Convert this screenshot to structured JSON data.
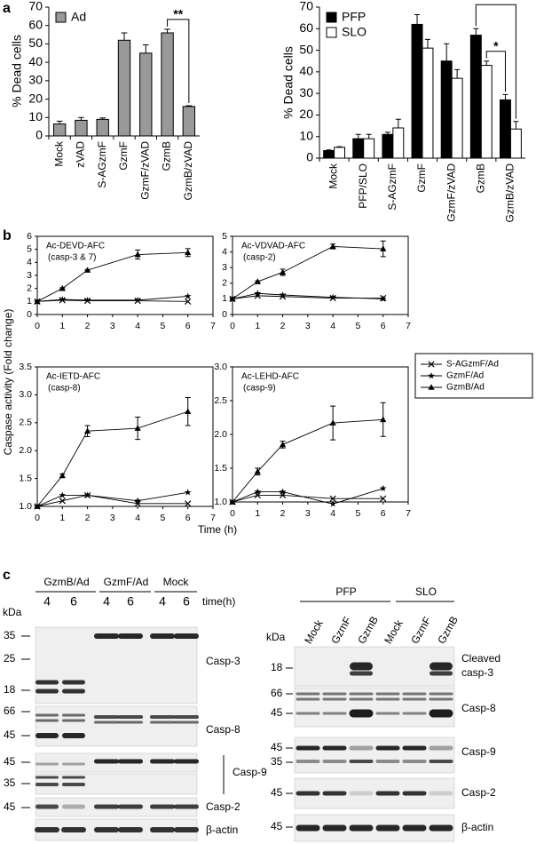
{
  "panel_labels": [
    "a",
    "b",
    "c"
  ],
  "chart_data": [
    {
      "type": "bar",
      "ylabel": "% Dead cells",
      "categories": [
        "Mock",
        "zVAD",
        "S-AGzmF",
        "GzmF",
        "GzmF/zVAD",
        "GzmB",
        "GzmB/zVAD"
      ],
      "series": [
        {
          "name": "Ad",
          "color": "#999999",
          "values": [
            6.5,
            8.5,
            9,
            52,
            45,
            56,
            16
          ],
          "errors": [
            1.5,
            1.5,
            0.8,
            4,
            4.5,
            2,
            0.4
          ]
        }
      ],
      "ylim": [
        0,
        70
      ],
      "yticks": [
        0,
        10,
        20,
        30,
        40,
        50,
        60,
        70
      ],
      "legend": "upper left",
      "annotations": [
        "**"
      ]
    },
    {
      "type": "bar",
      "ylabel": "% Dead cells",
      "categories": [
        "Mock",
        "PFP/SLO",
        "S-AGzmF",
        "GzmF",
        "GzmF/zVAD",
        "GzmB",
        "GzmB/zVAD"
      ],
      "series": [
        {
          "name": "PFP",
          "color": "#000000",
          "values": [
            3.5,
            9,
            11,
            62,
            45,
            57,
            27
          ],
          "errors": [
            0.3,
            2,
            1,
            4.5,
            8,
            3,
            2.5
          ]
        },
        {
          "name": "SLO",
          "color": "#ffffff",
          "values": [
            5,
            9,
            14,
            51,
            37,
            43,
            13.5
          ],
          "errors": [
            0.3,
            2,
            4,
            4,
            4,
            2,
            3.5
          ]
        }
      ],
      "ylim": [
        0,
        70
      ],
      "yticks": [
        0,
        10,
        20,
        30,
        40,
        50,
        60,
        70
      ],
      "legend": "upper left",
      "annotations": [
        "*",
        "*"
      ]
    },
    {
      "type": "line",
      "title": "Ac-DEVD-AFC",
      "subtitle": "(casp-3 & 7)",
      "ylabel": "Caspase activity (Fold change)",
      "xlabel": "Time (h)",
      "legend": "right",
      "x": [
        0,
        1,
        2,
        4,
        6
      ],
      "xlim": [
        0,
        7
      ],
      "xticks": [
        0,
        1,
        2,
        3,
        4,
        5,
        6,
        7
      ],
      "ylim": [
        0,
        6
      ],
      "yticks": [
        0,
        1,
        2,
        3,
        4,
        5,
        6
      ],
      "series": [
        {
          "name": "S-AGzmF/Ad",
          "color": "#000000",
          "values": [
            1,
            1.1,
            1.05,
            1.05,
            1.0
          ]
        },
        {
          "name": "GzmF/Ad",
          "color": "#000000",
          "values": [
            1,
            1.15,
            1.1,
            1.1,
            1.4
          ]
        },
        {
          "name": "GzmB/Ad",
          "color": "#000000",
          "values": [
            1,
            2,
            3.4,
            4.6,
            4.75
          ],
          "errors": [
            0,
            0.05,
            0.05,
            0.35,
            0.3
          ]
        }
      ]
    },
    {
      "type": "line",
      "title": "Ac-VDVAD-AFC",
      "subtitle": "(casp-2)",
      "x": [
        0,
        1,
        2,
        4,
        6
      ],
      "xlim": [
        0,
        7
      ],
      "xticks": [
        0,
        1,
        2,
        3,
        4,
        5,
        6,
        7
      ],
      "ylim": [
        0,
        5
      ],
      "yticks": [
        0,
        1,
        2,
        3,
        4,
        5
      ],
      "series": [
        {
          "color": "#000000",
          "values": [
            1,
            1.2,
            1.15,
            1.05,
            1.05
          ]
        },
        {
          "color": "#000000",
          "values": [
            1,
            1.35,
            1.25,
            1.1,
            1.0
          ]
        },
        {
          "color": "#000000",
          "values": [
            1,
            2.1,
            2.7,
            4.35,
            4.2
          ],
          "errors": [
            0,
            0.05,
            0.2,
            0.15,
            0.5
          ]
        }
      ]
    },
    {
      "type": "line",
      "title": "Ac-IETD-AFC",
      "subtitle": "(casp-8)",
      "x": [
        0,
        1,
        2,
        4,
        6
      ],
      "xlim": [
        0,
        7
      ],
      "xticks": [
        0,
        1,
        2,
        3,
        4,
        5,
        6,
        7
      ],
      "ylim": [
        1,
        3.5
      ],
      "yticks": [
        {
          "value": 1,
          "label": "1.0"
        },
        1.5,
        {
          "value": 2,
          "label": "2.0"
        },
        2.5,
        {
          "value": 3,
          "label": "3.0"
        },
        3.5
      ],
      "series": [
        {
          "color": "#000000",
          "values": [
            1,
            1.1,
            1.2,
            1.05,
            1.05
          ]
        },
        {
          "color": "#000000",
          "values": [
            1,
            1.2,
            1.2,
            1.1,
            1.25
          ]
        },
        {
          "color": "#000000",
          "values": [
            1,
            1.55,
            2.35,
            2.4,
            2.7
          ],
          "errors": [
            0,
            0.03,
            0.1,
            0.2,
            0.25
          ]
        }
      ]
    },
    {
      "type": "line",
      "title": "Ac-LEHD-AFC",
      "subtitle": "(casp-9)",
      "x": [
        0,
        1,
        2,
        4,
        6
      ],
      "xlim": [
        0,
        7
      ],
      "xticks": [
        0,
        1,
        2,
        3,
        4,
        5,
        6,
        7
      ],
      "ylim": [
        1,
        3
      ],
      "yticks": [
        {
          "value": 1,
          "label": "1.0"
        },
        1.5,
        {
          "value": 2,
          "label": "2.0"
        },
        2.5,
        {
          "value": 3,
          "label": "3.0"
        }
      ],
      "series": [
        {
          "color": "#000000",
          "values": [
            1,
            1.1,
            1.1,
            1.05,
            1.05
          ]
        },
        {
          "color": "#000000",
          "values": [
            1,
            1.15,
            1.15,
            0.97,
            1.2
          ]
        },
        {
          "color": "#000000",
          "values": [
            1,
            1.45,
            1.85,
            2.17,
            2.22
          ],
          "errors": [
            0,
            0.05,
            0.05,
            0.25,
            0.25
          ]
        }
      ]
    }
  ],
  "figure_c": {
    "left": {
      "kda": "kDa",
      "groups": [
        "GzmB/Ad",
        "GzmF/Ad",
        "Mock"
      ],
      "times": [
        "4",
        "6",
        "4",
        "6",
        "4",
        "6"
      ],
      "time_label": "time(h)",
      "mw": [
        "35",
        "25",
        "18",
        "66",
        "45",
        "45",
        "35",
        "45"
      ],
      "proteins": [
        "Casp-3",
        "Casp-8",
        "Casp-9",
        "Casp-2",
        "β-actin"
      ]
    },
    "right": {
      "kda": "kDa",
      "groups": [
        "PFP",
        "SLO"
      ],
      "lanes": [
        "Mock",
        "GzmF",
        "GzmB",
        "Mock",
        "GzmF",
        "GzmB"
      ],
      "mw": [
        "18",
        "66",
        "45",
        "45",
        "35",
        "45",
        "45"
      ],
      "proteins": [
        [
          "Cleaved",
          "casp-3"
        ],
        [
          "Casp-8"
        ],
        [
          "Casp-9"
        ],
        [
          "Casp-2"
        ],
        [
          "β-actin"
        ]
      ]
    }
  }
}
